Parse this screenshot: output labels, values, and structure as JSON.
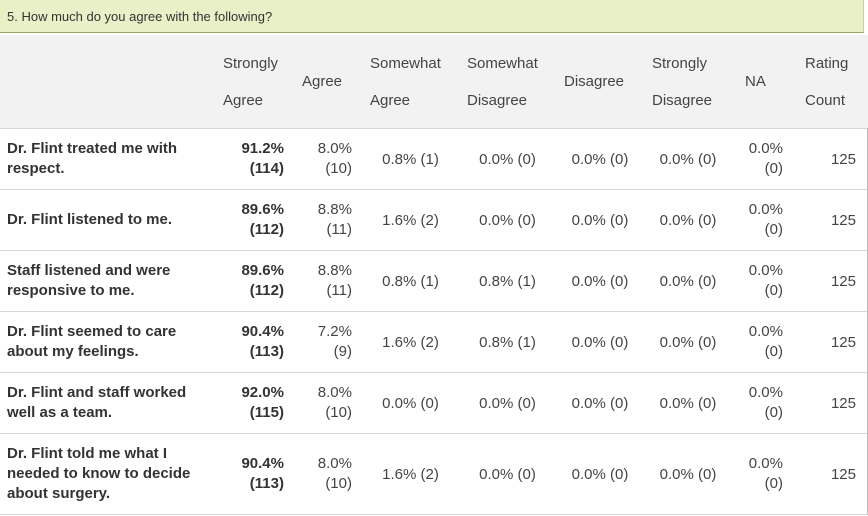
{
  "question": "5. How much do you agree with the following?",
  "headers": {
    "strongly_agree": [
      "Strongly",
      "Agree"
    ],
    "agree": "Agree",
    "somewhat_agree": [
      "Somewhat",
      "Agree"
    ],
    "somewhat_disagree": [
      "Somewhat",
      "Disagree"
    ],
    "disagree": "Disagree",
    "strongly_disagree": [
      "Strongly",
      "Disagree"
    ],
    "na": "NA",
    "rating_count": [
      "Rating",
      "Count"
    ]
  },
  "rows": [
    {
      "q": "Dr. Flint treated me with respect.",
      "sa_pct": "91.2%",
      "sa_n": "(114)",
      "ag_pct": "8.0%",
      "ag_n": "(10)",
      "swa": "0.8% (1)",
      "swd": "0.0% (0)",
      "dis": "0.0% (0)",
      "sd": "0.0% (0)",
      "na_pct": "0.0%",
      "na_n": "(0)",
      "count": "125"
    },
    {
      "q": "Dr. Flint listened to me.",
      "sa_pct": "89.6%",
      "sa_n": "(112)",
      "ag_pct": "8.8%",
      "ag_n": "(11)",
      "swa": "1.6% (2)",
      "swd": "0.0% (0)",
      "dis": "0.0% (0)",
      "sd": "0.0% (0)",
      "na_pct": "0.0%",
      "na_n": "(0)",
      "count": "125"
    },
    {
      "q": "Staff listened and were responsive to me.",
      "sa_pct": "89.6%",
      "sa_n": "(112)",
      "ag_pct": "8.8%",
      "ag_n": "(11)",
      "swa": "0.8% (1)",
      "swd": "0.8% (1)",
      "dis": "0.0% (0)",
      "sd": "0.0% (0)",
      "na_pct": "0.0%",
      "na_n": "(0)",
      "count": "125"
    },
    {
      "q": "Dr. Flint seemed to care about my feelings.",
      "sa_pct": "90.4%",
      "sa_n": "(113)",
      "ag_pct": "7.2%",
      "ag_n": "(9)",
      "swa": "1.6% (2)",
      "swd": "0.8% (1)",
      "dis": "0.0% (0)",
      "sd": "0.0% (0)",
      "na_pct": "0.0%",
      "na_n": "(0)",
      "count": "125"
    },
    {
      "q": "Dr. Flint and staff worked well as a team.",
      "sa_pct": "92.0%",
      "sa_n": "(115)",
      "ag_pct": "8.0%",
      "ag_n": "(10)",
      "swa": "0.0% (0)",
      "swd": "0.0% (0)",
      "dis": "0.0% (0)",
      "sd": "0.0% (0)",
      "na_pct": "0.0%",
      "na_n": "(0)",
      "count": "125"
    },
    {
      "q": "Dr. Flint told me what I needed to know to decide about surgery.",
      "sa_pct": "90.4%",
      "sa_n": "(113)",
      "ag_pct": "8.0%",
      "ag_n": "(10)",
      "swa": "1.6% (2)",
      "swd": "0.0% (0)",
      "dis": "0.0% (0)",
      "sd": "0.0% (0)",
      "na_pct": "0.0%",
      "na_n": "(0)",
      "count": "125"
    }
  ],
  "colors": {
    "question_bar": "#e9f0c8",
    "header_bg": "#f2f2f2",
    "row_border": "#d8d8d8"
  }
}
